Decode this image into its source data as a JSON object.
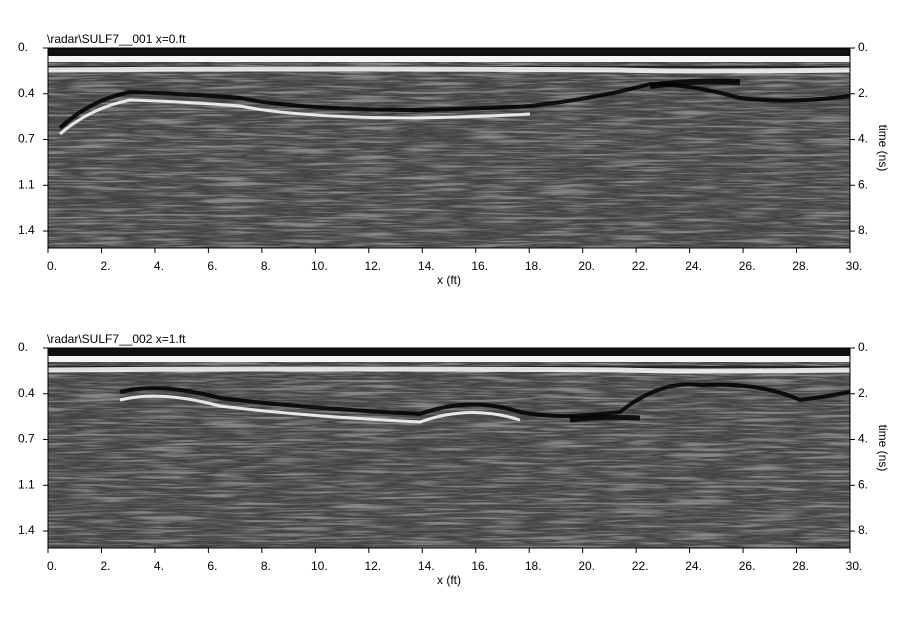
{
  "chart_data": [
    {
      "type": "radargram",
      "title": "\\radar\\SULF7__001   x=0.ft",
      "xlabel": "x (ft)",
      "y2label": "time (ns)",
      "xlim": [
        0,
        30
      ],
      "xticks": [
        {
          "value": 0,
          "label": "0."
        },
        {
          "value": 2,
          "label": "2."
        },
        {
          "value": 4,
          "label": "4."
        },
        {
          "value": 6,
          "label": "6."
        },
        {
          "value": 8,
          "label": "8."
        },
        {
          "value": 10,
          "label": "10."
        },
        {
          "value": 12,
          "label": "12."
        },
        {
          "value": 14,
          "label": "14."
        },
        {
          "value": 16,
          "label": "16."
        },
        {
          "value": 18,
          "label": "18."
        },
        {
          "value": 20,
          "label": "20."
        },
        {
          "value": 22,
          "label": "22."
        },
        {
          "value": 24,
          "label": "24."
        },
        {
          "value": 26,
          "label": "26."
        },
        {
          "value": 28,
          "label": "28."
        },
        {
          "value": 30,
          "label": "30."
        }
      ],
      "ylim": [
        0,
        1.556
      ],
      "yticks": [
        {
          "value": 0,
          "label": "0."
        },
        {
          "value": 0.356,
          "label": "0.4"
        },
        {
          "value": 0.712,
          "label": "0.7"
        },
        {
          "value": 1.068,
          "label": "1.1"
        },
        {
          "value": 1.424,
          "label": "1.4"
        }
      ],
      "y2lim": [
        0,
        8.74
      ],
      "y2ticks": [
        {
          "value": 0,
          "label": "0."
        },
        {
          "value": 2,
          "label": "2."
        },
        {
          "value": 4,
          "label": "4."
        },
        {
          "value": 6,
          "label": "6."
        },
        {
          "value": 8,
          "label": "8."
        }
      ]
    },
    {
      "type": "radargram",
      "title": "\\radar\\SULF7__002   x=1.ft",
      "xlabel": "x (ft)",
      "y2label": "time (ns)",
      "xlim": [
        0,
        30
      ],
      "xticks": [
        {
          "value": 0,
          "label": "0."
        },
        {
          "value": 2,
          "label": "2."
        },
        {
          "value": 4,
          "label": "4."
        },
        {
          "value": 6,
          "label": "6."
        },
        {
          "value": 8,
          "label": "8."
        },
        {
          "value": 10,
          "label": "10."
        },
        {
          "value": 12,
          "label": "12."
        },
        {
          "value": 14,
          "label": "14."
        },
        {
          "value": 16,
          "label": "16."
        },
        {
          "value": 18,
          "label": "18."
        },
        {
          "value": 20,
          "label": "20."
        },
        {
          "value": 22,
          "label": "22."
        },
        {
          "value": 24,
          "label": "24."
        },
        {
          "value": 26,
          "label": "26."
        },
        {
          "value": 28,
          "label": "28."
        },
        {
          "value": 30,
          "label": "30."
        }
      ],
      "ylim": [
        0,
        1.556
      ],
      "yticks": [
        {
          "value": 0,
          "label": "0."
        },
        {
          "value": 0.356,
          "label": "0.4"
        },
        {
          "value": 0.712,
          "label": "0.7"
        },
        {
          "value": 1.068,
          "label": "1.1"
        },
        {
          "value": 1.424,
          "label": "1.4"
        }
      ],
      "y2lim": [
        0,
        8.74
      ],
      "y2ticks": [
        {
          "value": 0,
          "label": "0."
        },
        {
          "value": 2,
          "label": "2."
        },
        {
          "value": 4,
          "label": "4."
        },
        {
          "value": 6,
          "label": "6."
        },
        {
          "value": 8,
          "label": "8."
        }
      ]
    }
  ]
}
